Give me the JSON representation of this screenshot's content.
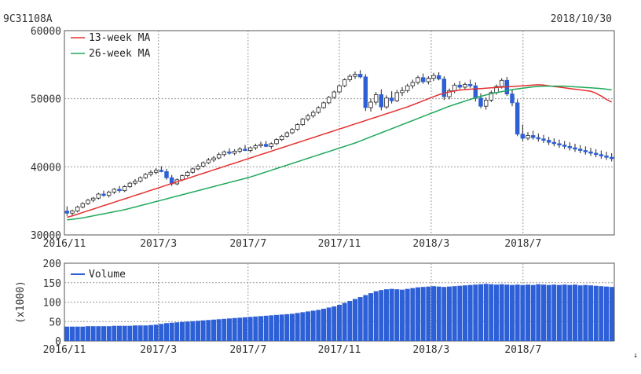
{
  "header": {
    "code": "9C31108A",
    "date": "2018/10/30"
  },
  "colors": {
    "up_candle": "#ffffff",
    "down_candle": "#2d5fd6",
    "ma13": "#e53030",
    "ma26": "#1fa85a",
    "volume": "#2d5fd6",
    "grid": "#999999"
  },
  "chart_data": [
    {
      "type": "candlestick",
      "title": "",
      "ylim": [
        30000,
        60000
      ],
      "y_ticks": [
        "30000",
        "40000",
        "50000",
        "60000"
      ],
      "x_ticks": [
        "2016/11",
        "2017/3",
        "2017/7",
        "2017/11",
        "2018/3",
        "2018/7"
      ],
      "grid": true,
      "legend_position": "top-left",
      "legend": [
        "13-week MA",
        "26-week MA"
      ],
      "dates": [
        "2016/11/04",
        "2016/11/11",
        "2016/11/18",
        "2016/11/25",
        "2016/12/02",
        "2016/12/09",
        "2016/12/16",
        "2016/12/23",
        "2016/12/30",
        "2017/01/06",
        "2017/01/13",
        "2017/01/20",
        "2017/01/27",
        "2017/02/03",
        "2017/02/10",
        "2017/02/17",
        "2017/02/24",
        "2017/03/03",
        "2017/03/10",
        "2017/03/17",
        "2017/03/24",
        "2017/03/31",
        "2017/04/07",
        "2017/04/14",
        "2017/04/21",
        "2017/04/28",
        "2017/05/05",
        "2017/05/12",
        "2017/05/19",
        "2017/05/26",
        "2017/06/02",
        "2017/06/09",
        "2017/06/16",
        "2017/06/23",
        "2017/06/30",
        "2017/07/07",
        "2017/07/14",
        "2017/07/21",
        "2017/07/28",
        "2017/08/04",
        "2017/08/11",
        "2017/08/18",
        "2017/08/25",
        "2017/09/01",
        "2017/09/08",
        "2017/09/15",
        "2017/09/22",
        "2017/09/29",
        "2017/10/06",
        "2017/10/13",
        "2017/10/20",
        "2017/10/27",
        "2017/11/03",
        "2017/11/10",
        "2017/11/17",
        "2017/11/24",
        "2017/12/01",
        "2017/12/08",
        "2017/12/15",
        "2017/12/22",
        "2017/12/29",
        "2018/01/05",
        "2018/01/12",
        "2018/01/19",
        "2018/01/26",
        "2018/02/02",
        "2018/02/09",
        "2018/02/16",
        "2018/02/23",
        "2018/03/02",
        "2018/03/09",
        "2018/03/16",
        "2018/03/23",
        "2018/03/30",
        "2018/04/06",
        "2018/04/13",
        "2018/04/20",
        "2018/04/27",
        "2018/05/04",
        "2018/05/11",
        "2018/05/18",
        "2018/05/25",
        "2018/06/01",
        "2018/06/08",
        "2018/06/15",
        "2018/06/22",
        "2018/06/29",
        "2018/07/06",
        "2018/07/13",
        "2018/07/20",
        "2018/07/27",
        "2018/08/03",
        "2018/08/10",
        "2018/08/17",
        "2018/08/24",
        "2018/08/31",
        "2018/09/07",
        "2018/09/14",
        "2018/09/21",
        "2018/09/28",
        "2018/10/05",
        "2018/10/12",
        "2018/10/19",
        "2018/10/26",
        "2018/10/30"
      ],
      "series": [
        {
          "name": "13-week MA",
          "values": [
            32600,
            32800,
            33050,
            33300,
            33550,
            33800,
            34050,
            34300,
            34550,
            34800,
            35050,
            35300,
            35550,
            35800,
            36050,
            36300,
            36550,
            36800,
            37050,
            37300,
            37550,
            37800,
            38050,
            38300,
            38550,
            38800,
            39050,
            39300,
            39550,
            39800,
            40050,
            40300,
            40550,
            40800,
            41050,
            41300,
            41550,
            41800,
            42050,
            42300,
            42550,
            42800,
            43050,
            43300,
            43550,
            43800,
            44050,
            44300,
            44550,
            44800,
            45050,
            45300,
            45550,
            45800,
            46050,
            46300,
            46550,
            46800,
            47050,
            47300,
            47550,
            47800,
            48050,
            48300,
            48550,
            48800,
            49100,
            49400,
            49700,
            50000,
            50300,
            50600,
            50800,
            51000,
            51150,
            51250,
            51350,
            51400,
            51450,
            51500,
            51550,
            51600,
            51650,
            51700,
            51750,
            51800,
            51850,
            51900,
            51950,
            52000,
            52050,
            52000,
            51900,
            51800,
            51700,
            51600,
            51500,
            51400,
            51300,
            51200,
            51100,
            50800,
            50400,
            49900,
            49500
          ]
        },
        {
          "name": "26-week MA",
          "values": [
            32200,
            32300,
            32400,
            32500,
            32650,
            32800,
            32950,
            33100,
            33250,
            33400,
            33550,
            33700,
            33900,
            34100,
            34300,
            34500,
            34700,
            34900,
            35100,
            35300,
            35500,
            35700,
            35900,
            36100,
            36300,
            36500,
            36700,
            36900,
            37100,
            37300,
            37500,
            37700,
            37900,
            38100,
            38300,
            38500,
            38750,
            39000,
            39250,
            39500,
            39750,
            40000,
            40250,
            40500,
            40750,
            41000,
            41250,
            41500,
            41750,
            42000,
            42250,
            42500,
            42750,
            43000,
            43250,
            43500,
            43800,
            44100,
            44400,
            44700,
            45000,
            45300,
            45600,
            45900,
            46200,
            46500,
            46800,
            47100,
            47400,
            47700,
            48000,
            48300,
            48600,
            48900,
            49150,
            49400,
            49650,
            49900,
            50150,
            50350,
            50550,
            50750,
            50900,
            51050,
            51200,
            51350,
            51450,
            51550,
            51650,
            51750,
            51800,
            51850,
            51850,
            51850,
            51850,
            51850,
            51800,
            51750,
            51700,
            51650,
            51600,
            51550,
            51500,
            51400,
            51300
          ]
        }
      ],
      "ohlc": [
        [
          33500,
          34200,
          32800,
          33200
        ],
        [
          33200,
          33700,
          32700,
          33500
        ],
        [
          33500,
          34300,
          33300,
          34100
        ],
        [
          34100,
          34800,
          33900,
          34600
        ],
        [
          34600,
          35300,
          34400,
          35100
        ],
        [
          35100,
          35600,
          34800,
          35400
        ],
        [
          35400,
          36200,
          35200,
          36000
        ],
        [
          36000,
          36500,
          35600,
          35800
        ],
        [
          35800,
          36500,
          35500,
          36300
        ],
        [
          36300,
          36900,
          36000,
          36700
        ],
        [
          36700,
          37200,
          36200,
          36500
        ],
        [
          36500,
          37300,
          36300,
          37100
        ],
        [
          37100,
          37800,
          36900,
          37600
        ],
        [
          37600,
          38200,
          37300,
          37900
        ],
        [
          37900,
          38600,
          37700,
          38400
        ],
        [
          38400,
          39100,
          38200,
          38900
        ],
        [
          38900,
          39500,
          38600,
          39200
        ],
        [
          39200,
          39800,
          38900,
          39500
        ],
        [
          39500,
          40100,
          39200,
          39300
        ],
        [
          39300,
          39700,
          38100,
          38400
        ],
        [
          38400,
          38800,
          37200,
          37500
        ],
        [
          37500,
          38300,
          37300,
          38100
        ],
        [
          38100,
          38900,
          37900,
          38700
        ],
        [
          38700,
          39400,
          38500,
          39200
        ],
        [
          39200,
          39900,
          39000,
          39700
        ],
        [
          39700,
          40400,
          39500,
          40100
        ],
        [
          40100,
          40800,
          39900,
          40600
        ],
        [
          40600,
          41300,
          40400,
          41000
        ],
        [
          41000,
          41600,
          40700,
          41300
        ],
        [
          41300,
          42100,
          41100,
          41800
        ],
        [
          41800,
          42400,
          41500,
          42200
        ],
        [
          42200,
          42700,
          41800,
          42000
        ],
        [
          42000,
          42600,
          41700,
          42300
        ],
        [
          42300,
          42900,
          42000,
          42600
        ],
        [
          42600,
          43200,
          42300,
          42400
        ],
        [
          42400,
          43000,
          42100,
          42800
        ],
        [
          42800,
          43400,
          42500,
          43100
        ],
        [
          43100,
          43700,
          42800,
          43300
        ],
        [
          43300,
          43800,
          42900,
          43000
        ],
        [
          43000,
          43600,
          42600,
          43400
        ],
        [
          43400,
          44200,
          43200,
          44000
        ],
        [
          44000,
          44700,
          43800,
          44500
        ],
        [
          44500,
          45200,
          44300,
          45000
        ],
        [
          45000,
          45700,
          44800,
          45500
        ],
        [
          45500,
          46400,
          45300,
          46200
        ],
        [
          46200,
          47200,
          46000,
          47000
        ],
        [
          47000,
          47800,
          46700,
          47500
        ],
        [
          47500,
          48300,
          47200,
          48000
        ],
        [
          48000,
          48900,
          47800,
          48700
        ],
        [
          48700,
          49600,
          48500,
          49400
        ],
        [
          49400,
          50400,
          49200,
          50200
        ],
        [
          50200,
          51200,
          50000,
          51000
        ],
        [
          51000,
          52100,
          50800,
          51900
        ],
        [
          51900,
          53000,
          51700,
          52800
        ],
        [
          52800,
          53600,
          52500,
          53300
        ],
        [
          53300,
          54000,
          52900,
          53600
        ],
        [
          53600,
          54200,
          53000,
          53200
        ],
        [
          53200,
          53600,
          48200,
          48700
        ],
        [
          48700,
          50000,
          48100,
          49500
        ],
        [
          49500,
          51000,
          49100,
          50600
        ],
        [
          50600,
          51400,
          48300,
          48800
        ],
        [
          48800,
          50500,
          48500,
          50100
        ],
        [
          50100,
          51100,
          49300,
          49700
        ],
        [
          49700,
          51300,
          49500,
          50900
        ],
        [
          50900,
          51700,
          50400,
          51200
        ],
        [
          51200,
          52200,
          50900,
          51900
        ],
        [
          51900,
          52800,
          51500,
          52400
        ],
        [
          52400,
          53400,
          52100,
          53100
        ],
        [
          53100,
          53700,
          52200,
          52500
        ],
        [
          52500,
          53300,
          52100,
          53000
        ],
        [
          53000,
          53800,
          52600,
          53400
        ],
        [
          53400,
          53900,
          52700,
          52900
        ],
        [
          52900,
          53300,
          49800,
          50300
        ],
        [
          50300,
          51500,
          49900,
          51200
        ],
        [
          51200,
          52300,
          50800,
          52000
        ],
        [
          52000,
          52600,
          51400,
          51700
        ],
        [
          51700,
          52400,
          51300,
          52100
        ],
        [
          52100,
          52800,
          51600,
          51900
        ],
        [
          51900,
          52400,
          49600,
          50100
        ],
        [
          50100,
          50800,
          48600,
          48900
        ],
        [
          48900,
          50200,
          48400,
          49800
        ],
        [
          49800,
          51200,
          49500,
          50900
        ],
        [
          50900,
          52100,
          50600,
          51800
        ],
        [
          51800,
          53000,
          51500,
          52700
        ],
        [
          52700,
          53200,
          50400,
          50700
        ],
        [
          50700,
          51300,
          48900,
          49400
        ],
        [
          49400,
          49900,
          44500,
          44800
        ],
        [
          44800,
          46200,
          43800,
          44200
        ],
        [
          44200,
          45100,
          43900,
          44600
        ],
        [
          44600,
          45300,
          44000,
          44300
        ],
        [
          44300,
          44900,
          43700,
          44100
        ],
        [
          44100,
          44700,
          43500,
          43900
        ],
        [
          43900,
          44400,
          43200,
          43600
        ],
        [
          43600,
          44200,
          43000,
          43400
        ],
        [
          43400,
          44000,
          42800,
          43200
        ],
        [
          43200,
          43800,
          42600,
          43000
        ],
        [
          43000,
          43600,
          42400,
          42800
        ],
        [
          42800,
          43400,
          42200,
          42600
        ],
        [
          42600,
          43200,
          42000,
          42400
        ],
        [
          42400,
          43000,
          41800,
          42200
        ],
        [
          42200,
          42800,
          41600,
          42000
        ],
        [
          42000,
          42600,
          41400,
          41800
        ],
        [
          41800,
          42400,
          41200,
          41600
        ],
        [
          41600,
          42200,
          41000,
          41400
        ],
        [
          41400,
          42000,
          40800,
          41200
        ]
      ]
    },
    {
      "type": "bar",
      "title": "",
      "ylabel": "(x1000)",
      "ylim": [
        0,
        200
      ],
      "y_ticks": [
        "0",
        "50",
        "100",
        "150",
        "200"
      ],
      "x_ticks": [
        "2016/11",
        "2017/3",
        "2017/7",
        "2017/11",
        "2018/3",
        "2018/7"
      ],
      "grid": true,
      "legend_position": "top-left",
      "legend": [
        "Volume"
      ],
      "values": [
        37,
        37,
        37,
        37,
        38,
        38,
        38,
        38,
        38,
        39,
        39,
        39,
        39,
        40,
        40,
        40,
        41,
        42,
        44,
        46,
        47,
        48,
        49,
        50,
        51,
        52,
        53,
        54,
        55,
        56,
        57,
        58,
        59,
        60,
        61,
        62,
        63,
        64,
        65,
        66,
        67,
        68,
        69,
        70,
        72,
        74,
        76,
        78,
        80,
        83,
        86,
        89,
        93,
        98,
        103,
        108,
        113,
        118,
        123,
        128,
        131,
        133,
        134,
        133,
        132,
        134,
        136,
        138,
        139,
        140,
        141,
        140,
        139,
        140,
        141,
        142,
        143,
        144,
        145,
        146,
        147,
        146,
        145,
        146,
        145,
        144,
        145,
        144,
        145,
        144,
        146,
        145,
        144,
        145,
        144,
        145,
        144,
        145,
        143,
        144,
        143,
        142,
        141,
        140,
        139
      ]
    }
  ]
}
